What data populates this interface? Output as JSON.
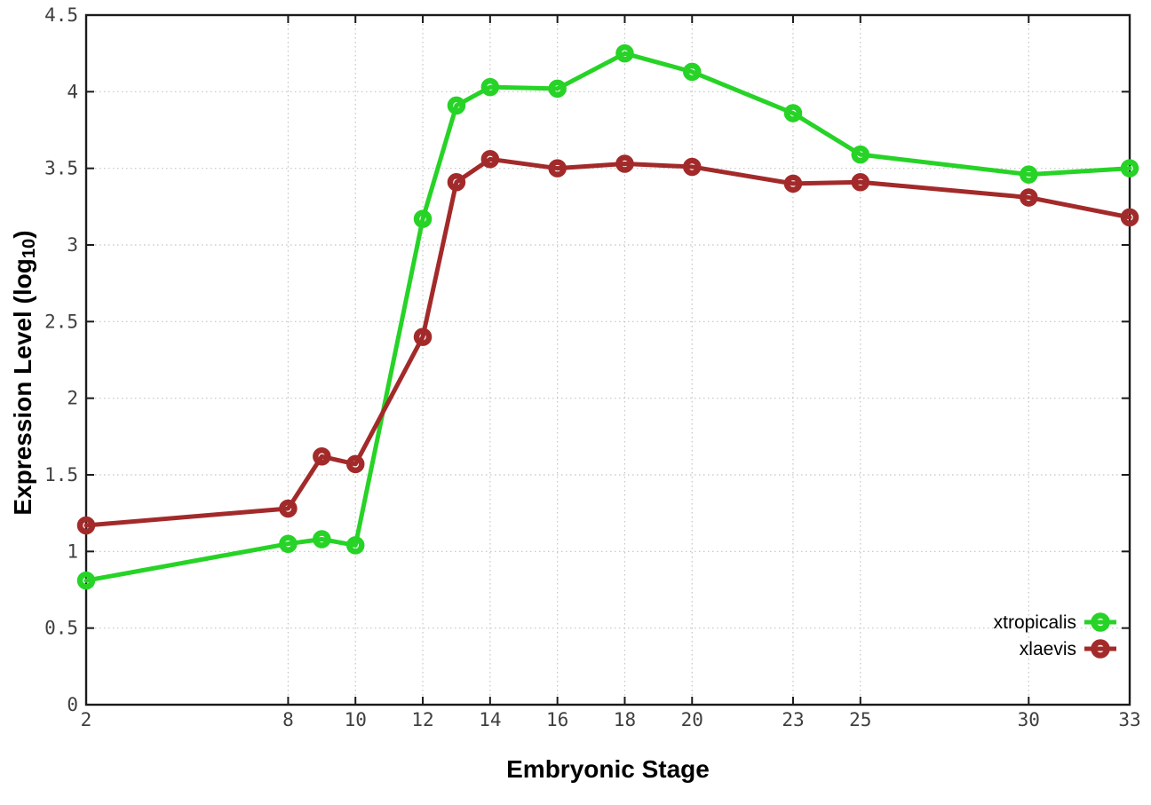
{
  "chart_data": {
    "type": "line",
    "title": "",
    "xlabel": "Embryonic Stage",
    "ylabel": {
      "pre": "Expression Level (log",
      "sub": "10",
      "post": ")"
    },
    "xlim": [
      2,
      33
    ],
    "ylim": [
      0,
      4.5
    ],
    "x_ticks": [
      2,
      8,
      10,
      12,
      14,
      16,
      18,
      20,
      23,
      25,
      30,
      33
    ],
    "y_ticks": [
      0,
      0.5,
      1,
      1.5,
      2,
      2.5,
      3,
      3.5,
      4,
      4.5
    ],
    "grid": true,
    "legend_position": "bottom-right",
    "x": [
      2,
      8,
      9,
      10,
      12,
      13,
      14,
      16,
      18,
      20,
      23,
      25,
      30,
      33
    ],
    "series": [
      {
        "name": "xtropicalis",
        "color": "#26d326",
        "values": [
          0.81,
          1.05,
          1.08,
          1.04,
          3.17,
          3.91,
          4.03,
          4.02,
          4.25,
          4.13,
          3.86,
          3.59,
          3.46,
          3.5
        ]
      },
      {
        "name": "xlaevis",
        "color": "#a32a2a",
        "values": [
          1.17,
          1.28,
          1.62,
          1.57,
          2.4,
          3.41,
          3.56,
          3.5,
          3.53,
          3.51,
          3.4,
          3.41,
          3.31,
          3.18
        ]
      }
    ],
    "colors": {
      "background": "#ffffff",
      "grid": "#c4c4c4",
      "axis": "#1a1a1a",
      "tick_label": "#3f3f3f",
      "legend_text": "#000000"
    }
  }
}
